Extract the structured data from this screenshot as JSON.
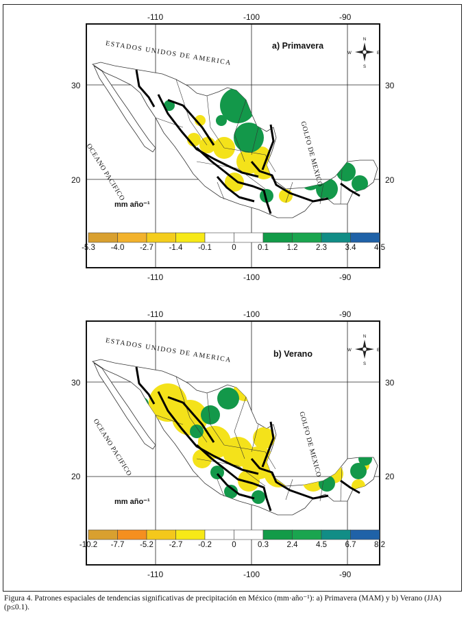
{
  "figure": {
    "caption": "Figura 4. Patrones espaciales de tendencias significativas de precipitación en México (mm·año⁻¹): a) Primavera (MAM) y b) Verano (JJA) (p≤0.1)."
  },
  "panels": [
    {
      "title": "a) Primavera",
      "units": "mm año⁻¹",
      "country_label": "ESTADOS UNIDOS DE AMERICA",
      "pacific_label": "OCEANO PACIFICO",
      "gulf_label": "GOLFO DE MEXICO",
      "lon_ticks": [
        "-110",
        "-100",
        "-90"
      ],
      "lat_ticks": [
        "30",
        "20"
      ],
      "colorbar": {
        "labels": [
          "-5.3",
          "-4.0",
          "-2.7",
          "-1.4",
          "-0.1",
          "0",
          "0.1",
          "1.2",
          "2.3",
          "3.4",
          "4.5"
        ],
        "colors": [
          "#d9a02f",
          "#f2b22c",
          "#f4cd1c",
          "#f7e917",
          "#ffffff",
          "#ffffff",
          "#129b48",
          "#1aa54f",
          "#118d86",
          "#1f62a8",
          "#2b3f9a"
        ]
      }
    },
    {
      "title": "b) Verano",
      "units": "mm año⁻¹",
      "country_label": "ESTADOS UNIDOS DE AMERICA",
      "pacific_label": "OCEANO PACIFICO",
      "gulf_label": "GOLFO DE MEXICO",
      "lon_ticks": [
        "-110",
        "-100",
        "-90"
      ],
      "lat_ticks": [
        "30",
        "20"
      ],
      "colorbar": {
        "labels": [
          "-10.2",
          "-7.7",
          "-5.2",
          "-2.7",
          "-0.2",
          "0",
          "0.3",
          "2.4",
          "4.5",
          "6.7",
          "8.2"
        ],
        "colors": [
          "#d9a02f",
          "#f58f1f",
          "#f4c81b",
          "#f7e917",
          "#ffffff",
          "#ffffff",
          "#129b48",
          "#1aa54f",
          "#118d86",
          "#1f62a8",
          "#2b3f9a"
        ]
      }
    }
  ],
  "compass": {
    "n": "N",
    "s": "S",
    "e": "E",
    "w": "W"
  }
}
